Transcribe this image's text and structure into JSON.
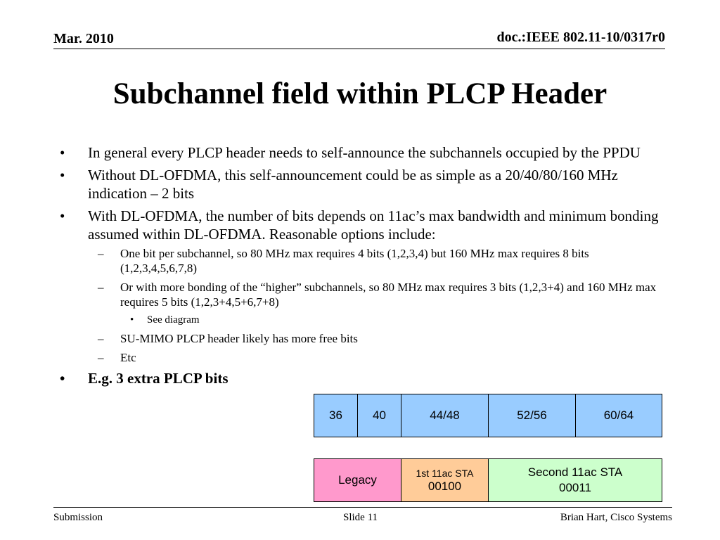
{
  "header": {
    "date": "Mar. 2010",
    "doc_id": "doc.:IEEE 802.11-10/0317r0"
  },
  "title": "Subchannel field within PLCP Header",
  "bullets": [
    "In general every PLCP header needs to self-announce the subchannels occupied by the PPDU",
    "Without DL-OFDMA, this self-announcement could be as simple as a 20/40/80/160 MHz indication – 2 bits",
    "With DL-OFDMA, the number of bits depends on 11ac’s max bandwidth and minimum bonding assumed within DL-OFDMA. Reasonable options include:"
  ],
  "sub_bullets": [
    "One bit per subchannel, so 80 MHz max requires 4 bits (1,2,3,4) but 160 MHz max requires 8 bits (1,2,3,4,5,6,7,8)",
    "Or with more bonding of the “higher” subchannels, so 80 MHz max requires 3 bits (1,2,3+4) and 160 MHz max requires 5 bits (1,2,3+4,5+6,7+8)",
    "SU-MIMO PLCP header likely has more free bits",
    "Etc"
  ],
  "sub_sub_bullets": [
    "See diagram"
  ],
  "final_bullet": "E.g. 3 extra PLCP bits",
  "markers": {
    "bullet": "•",
    "dash": "–"
  },
  "diagram": {
    "channels": [
      "36",
      "40",
      "44/48",
      "52/56",
      "60/64"
    ],
    "allocation": {
      "legacy": "Legacy",
      "sta1_name": "1st 11ac STA",
      "sta1_bits": "00100",
      "sta2_name": "Second 11ac STA",
      "sta2_bits": "00011"
    },
    "colors": {
      "channel": "#99ccff",
      "legacy": "#ff99cc",
      "sta1": "#ffcc99",
      "sta2": "#ccffcc"
    }
  },
  "footer": {
    "left": "Submission",
    "center": "Slide 11",
    "right": "Brian Hart, Cisco Systems"
  }
}
